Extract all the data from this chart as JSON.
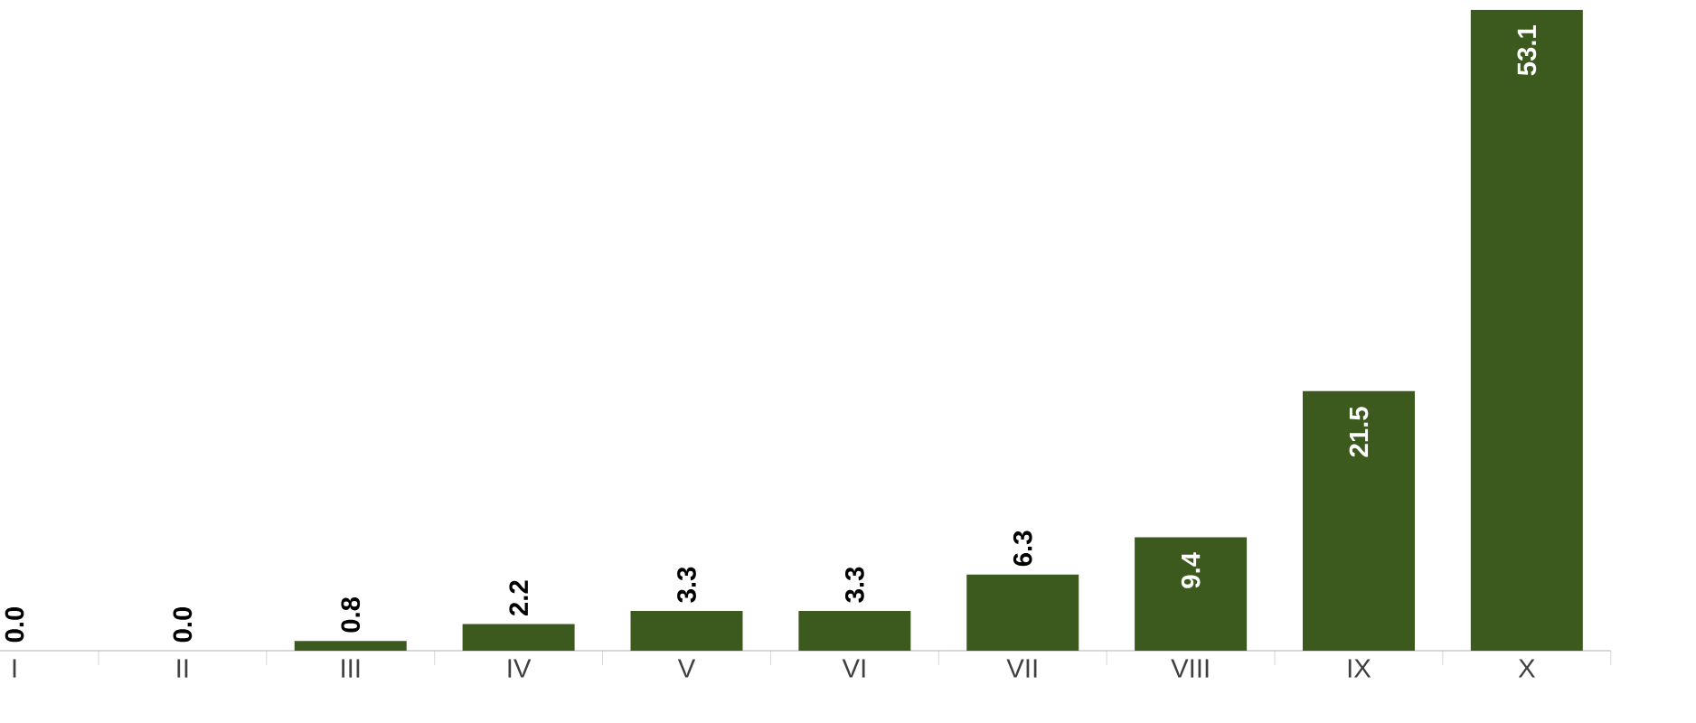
{
  "chart_data": {
    "type": "bar",
    "categories": [
      "I",
      "II",
      "III",
      "IV",
      "V",
      "VI",
      "VII",
      "VIII",
      "IX",
      "X"
    ],
    "values": [
      0.0,
      0.0,
      0.8,
      2.2,
      3.3,
      3.3,
      6.3,
      9.4,
      21.5,
      53.1
    ],
    "value_labels": [
      "0.0",
      "0.0",
      "0.8",
      "2.2",
      "3.3",
      "3.3",
      "6.3",
      "9.4",
      "21.5",
      "53.1"
    ],
    "color": "#3d5a1e"
  }
}
